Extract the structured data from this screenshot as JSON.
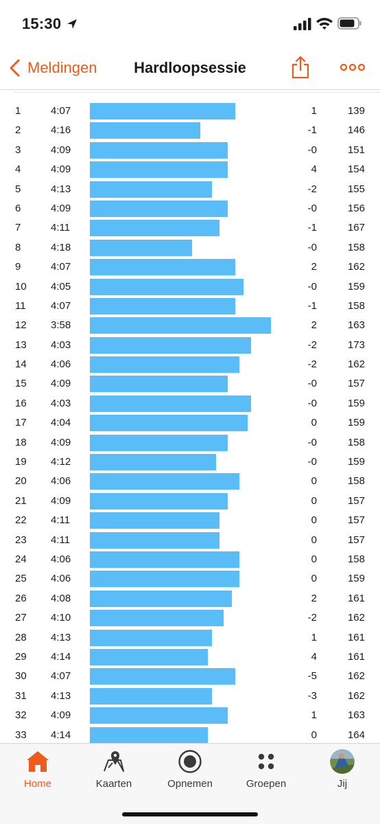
{
  "status_bar": {
    "time": "15:30"
  },
  "nav": {
    "back_label": "Meldingen",
    "title": "Hardloopsessie"
  },
  "colors": {
    "accent": "#f05a1a",
    "bar": "#5bbdf7"
  },
  "splits": [
    {
      "km": "1",
      "pace": "4:07",
      "pace_seconds": 247,
      "elev": "1",
      "hr": "139"
    },
    {
      "km": "2",
      "pace": "4:16",
      "pace_seconds": 256,
      "elev": "-1",
      "hr": "146"
    },
    {
      "km": "3",
      "pace": "4:09",
      "pace_seconds": 249,
      "elev": "-0",
      "hr": "151"
    },
    {
      "km": "4",
      "pace": "4:09",
      "pace_seconds": 249,
      "elev": "4",
      "hr": "154"
    },
    {
      "km": "5",
      "pace": "4:13",
      "pace_seconds": 253,
      "elev": "-2",
      "hr": "155"
    },
    {
      "km": "6",
      "pace": "4:09",
      "pace_seconds": 249,
      "elev": "-0",
      "hr": "156"
    },
    {
      "km": "7",
      "pace": "4:11",
      "pace_seconds": 251,
      "elev": "-1",
      "hr": "167"
    },
    {
      "km": "8",
      "pace": "4:18",
      "pace_seconds": 258,
      "elev": "-0",
      "hr": "158"
    },
    {
      "km": "9",
      "pace": "4:07",
      "pace_seconds": 247,
      "elev": "2",
      "hr": "162"
    },
    {
      "km": "10",
      "pace": "4:05",
      "pace_seconds": 245,
      "elev": "-0",
      "hr": "159"
    },
    {
      "km": "11",
      "pace": "4:07",
      "pace_seconds": 247,
      "elev": "-1",
      "hr": "158"
    },
    {
      "km": "12",
      "pace": "3:58",
      "pace_seconds": 238,
      "elev": "2",
      "hr": "163"
    },
    {
      "km": "13",
      "pace": "4:03",
      "pace_seconds": 243,
      "elev": "-2",
      "hr": "173"
    },
    {
      "km": "14",
      "pace": "4:06",
      "pace_seconds": 246,
      "elev": "-2",
      "hr": "162"
    },
    {
      "km": "15",
      "pace": "4:09",
      "pace_seconds": 249,
      "elev": "-0",
      "hr": "157"
    },
    {
      "km": "16",
      "pace": "4:03",
      "pace_seconds": 243,
      "elev": "-0",
      "hr": "159"
    },
    {
      "km": "17",
      "pace": "4:04",
      "pace_seconds": 244,
      "elev": "0",
      "hr": "159"
    },
    {
      "km": "18",
      "pace": "4:09",
      "pace_seconds": 249,
      "elev": "-0",
      "hr": "158"
    },
    {
      "km": "19",
      "pace": "4:12",
      "pace_seconds": 252,
      "elev": "-0",
      "hr": "159"
    },
    {
      "km": "20",
      "pace": "4:06",
      "pace_seconds": 246,
      "elev": "0",
      "hr": "158"
    },
    {
      "km": "21",
      "pace": "4:09",
      "pace_seconds": 249,
      "elev": "0",
      "hr": "157"
    },
    {
      "km": "22",
      "pace": "4:11",
      "pace_seconds": 251,
      "elev": "0",
      "hr": "157"
    },
    {
      "km": "23",
      "pace": "4:11",
      "pace_seconds": 251,
      "elev": "0",
      "hr": "157"
    },
    {
      "km": "24",
      "pace": "4:06",
      "pace_seconds": 246,
      "elev": "0",
      "hr": "158"
    },
    {
      "km": "25",
      "pace": "4:06",
      "pace_seconds": 246,
      "elev": "0",
      "hr": "159"
    },
    {
      "km": "26",
      "pace": "4:08",
      "pace_seconds": 248,
      "elev": "2",
      "hr": "161"
    },
    {
      "km": "27",
      "pace": "4:10",
      "pace_seconds": 250,
      "elev": "-2",
      "hr": "162"
    },
    {
      "km": "28",
      "pace": "4:13",
      "pace_seconds": 253,
      "elev": "1",
      "hr": "161"
    },
    {
      "km": "29",
      "pace": "4:14",
      "pace_seconds": 254,
      "elev": "4",
      "hr": "161"
    },
    {
      "km": "30",
      "pace": "4:07",
      "pace_seconds": 247,
      "elev": "-5",
      "hr": "162"
    },
    {
      "km": "31",
      "pace": "4:13",
      "pace_seconds": 253,
      "elev": "-3",
      "hr": "162"
    },
    {
      "km": "32",
      "pace": "4:09",
      "pace_seconds": 249,
      "elev": "1",
      "hr": "163"
    },
    {
      "km": "33",
      "pace": "4:14",
      "pace_seconds": 254,
      "elev": "0",
      "hr": "164"
    }
  ],
  "tabs": [
    {
      "label": "Home",
      "icon": "home-icon",
      "active": true
    },
    {
      "label": "Kaarten",
      "icon": "map-icon",
      "active": false
    },
    {
      "label": "Opnemen",
      "icon": "record-icon",
      "active": false
    },
    {
      "label": "Groepen",
      "icon": "groups-icon",
      "active": false
    },
    {
      "label": "Jij",
      "icon": "avatar",
      "active": false
    }
  ]
}
